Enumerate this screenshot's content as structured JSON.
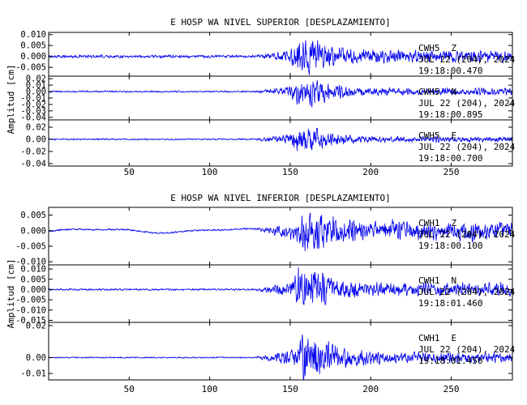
{
  "chart_data": [
    {
      "type": "line",
      "title": "E HOSP WA NIVEL SUPERIOR [DESPLAZAMIENTO]",
      "ylabel": "Amplitud [cm]",
      "xlim": [
        0,
        288
      ],
      "x_ticks": [
        "50",
        "100",
        "150",
        "200",
        "250"
      ],
      "series": [
        {
          "station": "CWH5",
          "channel": "Z",
          "date": "JUL 22 (204), 2024",
          "time": "19:18:00.470",
          "y_ticks": [
            "0.010",
            "0.005",
            "0.000",
            "-0.005"
          ],
          "ylim": [
            -0.009,
            0.011
          ],
          "pre_amp": 0.0006,
          "low_amp": 0.0,
          "peak_amp": 0.008,
          "tail_amp": 0.0025,
          "onset": 128,
          "peak_t": 157
        },
        {
          "station": "CWH5",
          "channel": "N",
          "date": "JUL 22 (204), 2024",
          "time": "19:18:00.895",
          "y_ticks": [
            "0.02",
            "0.01",
            "0.00",
            "-0.01",
            "-0.02",
            "-0.03",
            "-0.04"
          ],
          "ylim": [
            -0.044,
            0.024
          ],
          "pre_amp": 0.0012,
          "low_amp": 0.0,
          "peak_amp": 0.022,
          "tail_amp": 0.005,
          "onset": 128,
          "peak_t": 157
        },
        {
          "station": "CWH5",
          "channel": "E",
          "date": "JUL 22 (204), 2024",
          "time": "19:18:00.700",
          "y_ticks": [
            "0.02",
            "0.00",
            "-0.02",
            "-0.04"
          ],
          "ylim": [
            -0.044,
            0.032
          ],
          "pre_amp": 0.0012,
          "low_amp": 0.0,
          "peak_amp": 0.022,
          "tail_amp": 0.004,
          "onset": 128,
          "peak_t": 157
        }
      ]
    },
    {
      "type": "line",
      "title": "E HOSP WA NIVEL INFERIOR [DESPLAZAMIENTO]",
      "ylabel": "Amplitud [cm]",
      "xlim": [
        0,
        288
      ],
      "x_ticks": [
        "50",
        "100",
        "150",
        "200",
        "250"
      ],
      "series": [
        {
          "station": "CWH1",
          "channel": "Z",
          "date": "JUL 22 (204), 2024",
          "time": "19:18:00.100",
          "y_ticks": [
            "0.005",
            "0.000",
            "-0.005",
            "-0.010"
          ],
          "ylim": [
            -0.011,
            0.0075
          ],
          "pre_amp": 0.00025,
          "low_amp": 0.0009,
          "peak_amp": 0.0068,
          "tail_amp": 0.0025,
          "onset": 128,
          "peak_t": 160
        },
        {
          "station": "CWH1",
          "channel": "N",
          "date": "JUL 22 (204), 2024",
          "time": "19:18:01.460",
          "y_ticks": [
            "0.010",
            "0.005",
            "0.000",
            "-0.005",
            "-0.010",
            "-0.015"
          ],
          "ylim": [
            -0.016,
            0.012
          ],
          "pre_amp": 0.0004,
          "low_amp": 0.0,
          "peak_amp": 0.01,
          "tail_amp": 0.003,
          "onset": 128,
          "peak_t": 157
        },
        {
          "station": "CWH1",
          "channel": "E",
          "date": "JUL 22 (204), 2024",
          "time": "19:18:01.450",
          "y_ticks": [
            "0.02",
            "0.00",
            "-0.01"
          ],
          "ylim": [
            -0.014,
            0.022
          ],
          "pre_amp": 0.0004,
          "low_amp": 0.0,
          "peak_amp": 0.014,
          "tail_amp": 0.003,
          "onset": 128,
          "peak_t": 160
        }
      ]
    }
  ]
}
